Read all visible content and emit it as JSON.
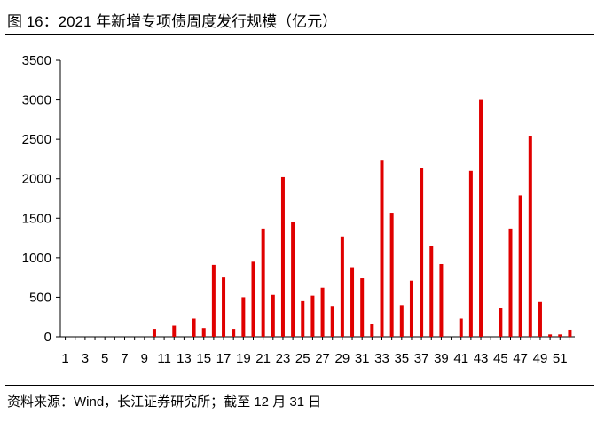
{
  "title": "图 16：2021 年新增专项债周度发行规模（亿元）",
  "source": "资料来源：Wind，长江证券研究所；截至 12 月 31 日",
  "chart_data": {
    "type": "bar",
    "bar_color": "#e00000",
    "ylim": [
      0,
      3500
    ],
    "yticks": [
      0,
      500,
      1000,
      1500,
      2000,
      2500,
      3000,
      3500
    ],
    "categories": [
      "1",
      "2",
      "3",
      "4",
      "5",
      "6",
      "7",
      "8",
      "9",
      "10",
      "11",
      "12",
      "13",
      "14",
      "15",
      "16",
      "17",
      "18",
      "19",
      "20",
      "21",
      "22",
      "23",
      "24",
      "25",
      "26",
      "27",
      "28",
      "29",
      "30",
      "31",
      "32",
      "33",
      "34",
      "35",
      "36",
      "37",
      "38",
      "39",
      "40",
      "41",
      "42",
      "43",
      "44",
      "45",
      "46",
      "47",
      "48",
      "49",
      "50",
      "51",
      "52"
    ],
    "xtick_labels": [
      "1",
      "3",
      "5",
      "7",
      "9",
      "11",
      "13",
      "15",
      "17",
      "19",
      "21",
      "23",
      "25",
      "27",
      "29",
      "31",
      "33",
      "35",
      "37",
      "39",
      "41",
      "43",
      "45",
      "47",
      "49",
      "51"
    ],
    "values": [
      0,
      0,
      0,
      0,
      0,
      0,
      0,
      0,
      0,
      100,
      0,
      140,
      0,
      230,
      110,
      910,
      750,
      100,
      500,
      950,
      1370,
      530,
      2020,
      1450,
      450,
      520,
      620,
      390,
      1270,
      880,
      740,
      160,
      2230,
      1570,
      400,
      710,
      2140,
      1150,
      920,
      0,
      230,
      2100,
      3000,
      0,
      360,
      1370,
      1790,
      2540,
      440,
      30,
      30,
      90
    ]
  }
}
